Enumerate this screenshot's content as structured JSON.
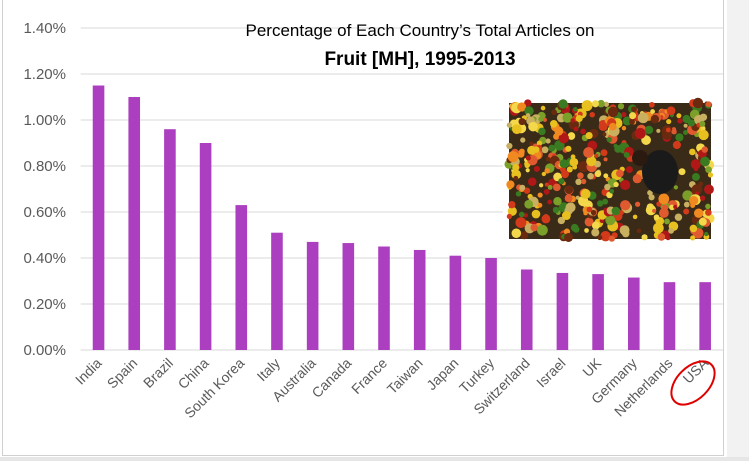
{
  "chart_data": {
    "type": "bar",
    "title": "Percentage of Each Country’s Total Articles on",
    "subtitle": "Fruit [MH], 1995-2013",
    "xlabel": "",
    "ylabel": "",
    "ylim": [
      0,
      1.4
    ],
    "yticks": [
      "0.00%",
      "0.20%",
      "0.40%",
      "0.60%",
      "0.80%",
      "1.00%",
      "1.20%",
      "1.40%"
    ],
    "grid": true,
    "categories": [
      "India",
      "Spain",
      "Brazil",
      "China",
      "South Korea",
      "Italy",
      "Australia",
      "Canada",
      "France",
      "Taiwan",
      "Japan",
      "Turkey",
      "Switzerland",
      "Israel",
      "UK",
      "Germany",
      "Netherlands",
      "USA"
    ],
    "values": [
      1.15,
      1.1,
      0.96,
      0.9,
      0.63,
      0.51,
      0.47,
      0.465,
      0.45,
      0.435,
      0.41,
      0.4,
      0.35,
      0.335,
      0.33,
      0.315,
      0.295,
      0.295
    ],
    "unit": "%",
    "highlighted_category": "USA",
    "bar_color": "#ab3fbf",
    "highlight_color": "#e00000"
  }
}
